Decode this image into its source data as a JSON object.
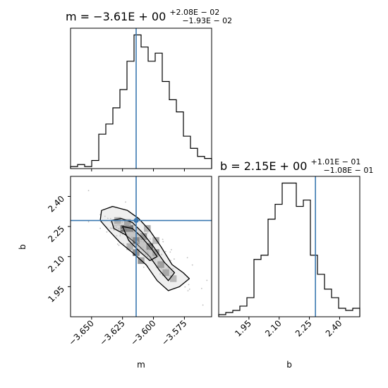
{
  "chart_data": [
    {
      "type": "histogram",
      "panel": "top-left",
      "title": {
        "base": "m = −3.61E + 00",
        "sup": "+2.08E − 02",
        "sub": "−1.93E − 02"
      },
      "xlim": [
        -3.667,
        -3.553
      ],
      "bin_edges": [
        -3.667,
        -3.6613,
        -3.6556,
        -3.6499,
        -3.6442,
        -3.6385,
        -3.6328,
        -3.6271,
        -3.6214,
        -3.6157,
        -3.61,
        -3.6043,
        -3.5986,
        -3.5929,
        -3.5872,
        -3.5815,
        -3.5758,
        -3.5701,
        -3.5644,
        -3.5587,
        -3.553
      ],
      "counts": [
        1,
        2,
        1,
        4,
        17,
        22,
        30,
        39,
        53,
        66,
        60,
        53,
        57,
        43,
        34,
        28,
        16,
        10,
        6,
        5
      ],
      "marker": -3.614,
      "xticks": [
        "−3.650",
        "−3.625",
        "−3.600",
        "−3.575"
      ],
      "xtick_values": [
        -3.65,
        -3.625,
        -3.6,
        -3.575
      ]
    },
    {
      "type": "histogram",
      "panel": "bottom-right",
      "title": {
        "base": "b = 2.15E + 00",
        "sup": "+1.01E − 01",
        "sub": "−1.08E − 01"
      },
      "xlim": [
        1.8,
        2.5
      ],
      "bin_edges": [
        1.8,
        1.835,
        1.87,
        1.905,
        1.94,
        1.975,
        2.01,
        2.045,
        2.08,
        2.115,
        2.15,
        2.185,
        2.22,
        2.255,
        2.29,
        2.325,
        2.36,
        2.395,
        2.43,
        2.465,
        2.5
      ],
      "counts": [
        1,
        2,
        3,
        5,
        9,
        27,
        29,
        46,
        53,
        63,
        63,
        52,
        55,
        29,
        20,
        13,
        9,
        4,
        3,
        4
      ],
      "marker": 2.28,
      "xticks": [
        "1.95",
        "2.10",
        "2.25",
        "2.40"
      ],
      "xtick_values": [
        1.95,
        2.1,
        2.25,
        2.4
      ],
      "xlabel": "b"
    },
    {
      "type": "heatmap",
      "panel": "bottom-left",
      "xlim": [
        -3.667,
        -3.553
      ],
      "ylim": [
        1.8,
        2.5
      ],
      "xlabel": "m",
      "ylabel": "b",
      "xticks": [
        "−3.650",
        "−3.625",
        "−3.600",
        "−3.575"
      ],
      "xtick_values": [
        -3.65,
        -3.625,
        -3.6,
        -3.575
      ],
      "yticks": [
        "1.95",
        "2.10",
        "2.25",
        "2.40"
      ],
      "ytick_values": [
        1.95,
        2.1,
        2.25,
        2.4
      ],
      "marker": {
        "m": -3.614,
        "b": 2.28
      },
      "contour_levels": [
        [
          [
            -3.642,
            2.33
          ],
          [
            -3.633,
            2.35
          ],
          [
            -3.621,
            2.33
          ],
          [
            -3.612,
            2.29
          ],
          [
            -3.603,
            2.23
          ],
          [
            -3.594,
            2.15
          ],
          [
            -3.585,
            2.06
          ],
          [
            -3.576,
            2.02
          ],
          [
            -3.571,
            1.99
          ],
          [
            -3.579,
            1.95
          ],
          [
            -3.588,
            1.93
          ],
          [
            -3.597,
            1.98
          ],
          [
            -3.606,
            2.06
          ],
          [
            -3.617,
            2.12
          ],
          [
            -3.627,
            2.17
          ],
          [
            -3.636,
            2.23
          ],
          [
            -3.643,
            2.28
          ]
        ],
        [
          [
            -3.634,
            2.28
          ],
          [
            -3.626,
            2.29
          ],
          [
            -3.617,
            2.27
          ],
          [
            -3.609,
            2.22
          ],
          [
            -3.6,
            2.15
          ],
          [
            -3.591,
            2.07
          ],
          [
            -3.583,
            2.02
          ],
          [
            -3.588,
            1.98
          ],
          [
            -3.595,
            2.03
          ],
          [
            -3.603,
            2.1
          ],
          [
            -3.613,
            2.16
          ],
          [
            -3.623,
            2.21
          ],
          [
            -3.632,
            2.24
          ]
        ],
        [
          [
            -3.625,
            2.25
          ],
          [
            -3.617,
            2.24
          ],
          [
            -3.61,
            2.2
          ],
          [
            -3.603,
            2.15
          ],
          [
            -3.597,
            2.1
          ],
          [
            -3.603,
            2.08
          ],
          [
            -3.612,
            2.13
          ],
          [
            -3.62,
            2.18
          ]
        ]
      ],
      "density_cells": [
        {
          "m": -3.624,
          "b": 2.24,
          "level": 1.0
        },
        {
          "m": -3.619,
          "b": 2.24,
          "level": 0.9
        },
        {
          "m": -3.614,
          "b": 2.18,
          "level": 0.95
        },
        {
          "m": -3.603,
          "b": 2.15,
          "level": 0.9
        },
        {
          "m": -3.614,
          "b": 2.12,
          "level": 0.6
        },
        {
          "m": -3.608,
          "b": 2.2,
          "level": 0.55
        },
        {
          "m": -3.598,
          "b": 2.12,
          "level": 0.55
        },
        {
          "m": -3.594,
          "b": 2.06,
          "level": 0.5
        },
        {
          "m": -3.621,
          "b": 2.27,
          "level": 0.45
        },
        {
          "m": -3.61,
          "b": 2.08,
          "level": 0.4
        },
        {
          "m": -3.59,
          "b": 2.02,
          "level": 0.4
        },
        {
          "m": -3.629,
          "b": 2.28,
          "level": 0.35
        },
        {
          "m": -3.605,
          "b": 2.24,
          "level": 0.3
        },
        {
          "m": -3.584,
          "b": 1.99,
          "level": 0.3
        },
        {
          "m": -3.619,
          "b": 2.15,
          "level": 0.35
        },
        {
          "m": -3.598,
          "b": 2.18,
          "level": 0.3
        }
      ]
    }
  ],
  "colors": {
    "marker": "#3a78b0",
    "line": "#000000"
  }
}
